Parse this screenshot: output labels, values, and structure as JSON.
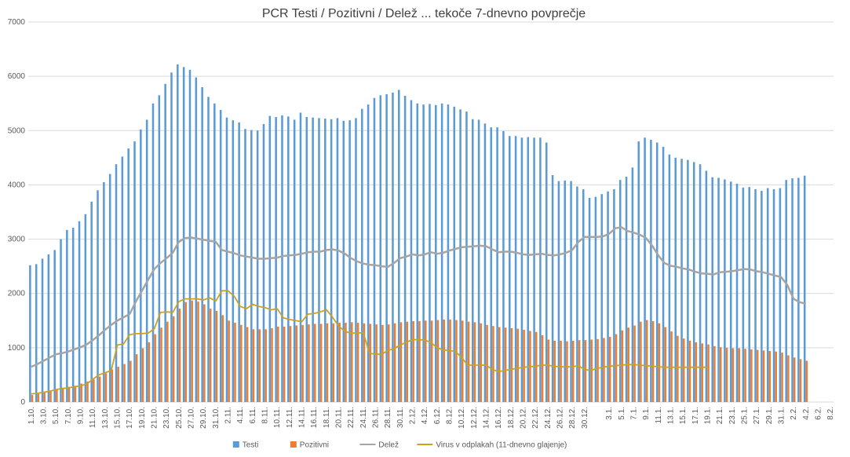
{
  "chart_data": {
    "type": "bar_line",
    "title": "PCR Testi / Pozitivni / Delež ... tekoče 7-dnevno povprečje",
    "ylim": [
      0,
      7000
    ],
    "yticks": [
      0,
      1000,
      2000,
      3000,
      4000,
      5000,
      6000,
      7000
    ],
    "grid": true,
    "legend": "bottom",
    "categories": [
      "1.10.",
      null,
      "3.10.",
      null,
      "5.10.",
      null,
      "7.10.",
      null,
      "9.10.",
      null,
      "11.10.",
      null,
      "13.10.",
      null,
      "15.10.",
      null,
      "17.10.",
      null,
      "19.10.",
      null,
      "21.10.",
      null,
      "23.10.",
      null,
      "25.10.",
      null,
      "27.10.",
      null,
      "29.10.",
      null,
      "31.10.",
      null,
      "2.11.",
      null,
      "4.11.",
      null,
      "6.11.",
      null,
      "8.11.",
      null,
      "10.11.",
      null,
      "12.11.",
      null,
      "14.11.",
      null,
      "16.11.",
      null,
      "18.11.",
      null,
      "20.11.",
      null,
      "22.11.",
      null,
      "24.11.",
      null,
      "26.11.",
      null,
      "28.11.",
      null,
      "30.11.",
      null,
      "2.12.",
      null,
      "4.12.",
      null,
      "6.12.",
      null,
      "8.12.",
      null,
      "10.12.",
      null,
      "12.12.",
      null,
      "14.12.",
      null,
      "16.12.",
      null,
      "18.12.",
      null,
      "20.12.",
      null,
      "22.12.",
      null,
      "24.12.",
      null,
      "26.12.",
      null,
      "28.12.",
      null,
      "30.12.",
      null,
      null,
      null,
      "3.1.",
      null,
      "5.1.",
      null,
      "7.1.",
      null,
      "9.1.",
      null,
      "11.1.",
      null,
      "13.1.",
      null,
      "15.1.",
      null,
      "17.1.",
      null,
      "19.1.",
      null,
      "21.1.",
      null,
      "23.1.",
      null,
      "25.1.",
      null,
      "27.1.",
      null,
      "29.1.",
      null,
      "31.1.",
      null,
      "2.2.",
      null,
      "4.2.",
      null,
      "6.2.",
      null,
      "8.2."
    ],
    "series": [
      {
        "name": "Testi",
        "kind": "bar",
        "color": "#5b9bd5",
        "values": [
          2520,
          2540,
          2640,
          2720,
          2800,
          3000,
          3170,
          3210,
          3330,
          3460,
          3690,
          3900,
          4050,
          4200,
          4380,
          4520,
          4670,
          4800,
          5020,
          5200,
          5500,
          5650,
          5860,
          6070,
          6220,
          6170,
          6120,
          5980,
          5800,
          5620,
          5500,
          5380,
          5240,
          5190,
          5150,
          5030,
          5010,
          5000,
          5120,
          5270,
          5250,
          5280,
          5260,
          5200,
          5330,
          5250,
          5240,
          5230,
          5220,
          5210,
          5230,
          5180,
          5190,
          5230,
          5400,
          5480,
          5600,
          5650,
          5670,
          5700,
          5750,
          5640,
          5560,
          5500,
          5480,
          5490,
          5470,
          5500,
          5480,
          5440,
          5390,
          5350,
          5210,
          5200,
          5130,
          5060,
          5060,
          4990,
          4900,
          4900,
          4870,
          4880,
          4870,
          4870,
          4780,
          4180,
          4070,
          4080,
          4070,
          3970,
          3920,
          3760,
          3780,
          3830,
          3880,
          3920,
          4090,
          4150,
          4320,
          4800,
          4870,
          4830,
          4780,
          4700,
          4560,
          4500,
          4480,
          4460,
          4420,
          4380,
          4260,
          4140,
          4130,
          4100,
          4060,
          4020,
          3950,
          3960,
          3920,
          3890,
          3940,
          3920,
          3940,
          4090,
          4120,
          4130,
          4170,
          null,
          null,
          null,
          null
        ]
      },
      {
        "name": "Pozitivni",
        "kind": "bar",
        "color": "#ed7d31",
        "values": [
          130,
          150,
          180,
          200,
          230,
          250,
          280,
          300,
          340,
          380,
          420,
          470,
          530,
          600,
          650,
          700,
          760,
          880,
          990,
          1100,
          1250,
          1370,
          1480,
          1580,
          1720,
          1840,
          1870,
          1850,
          1800,
          1720,
          1680,
          1600,
          1500,
          1460,
          1420,
          1380,
          1340,
          1340,
          1340,
          1360,
          1390,
          1390,
          1400,
          1410,
          1420,
          1430,
          1440,
          1440,
          1450,
          1450,
          1460,
          1460,
          1470,
          1460,
          1450,
          1440,
          1430,
          1420,
          1430,
          1450,
          1470,
          1480,
          1490,
          1490,
          1500,
          1500,
          1510,
          1520,
          1520,
          1510,
          1500,
          1480,
          1470,
          1450,
          1420,
          1400,
          1380,
          1370,
          1360,
          1350,
          1330,
          1310,
          1290,
          1230,
          1150,
          1130,
          1130,
          1120,
          1130,
          1140,
          1140,
          1150,
          1160,
          1180,
          1200,
          1250,
          1320,
          1370,
          1410,
          1480,
          1510,
          1490,
          1450,
          1380,
          1300,
          1220,
          1170,
          1130,
          1100,
          1080,
          1060,
          1030,
          1010,
          1000,
          990,
          990,
          980,
          970,
          960,
          950,
          940,
          930,
          910,
          860,
          820,
          790,
          760,
          null,
          null,
          null,
          null
        ]
      },
      {
        "name": "Delež",
        "kind": "line",
        "color": "#a5a5a5",
        "values": [
          650,
          700,
          760,
          820,
          880,
          900,
          930,
          970,
          1010,
          1060,
          1140,
          1230,
          1330,
          1420,
          1500,
          1560,
          1620,
          1850,
          2050,
          2250,
          2450,
          2560,
          2650,
          2750,
          2950,
          3020,
          3030,
          3010,
          2990,
          2970,
          2950,
          2800,
          2770,
          2740,
          2700,
          2680,
          2660,
          2640,
          2640,
          2650,
          2660,
          2690,
          2700,
          2710,
          2730,
          2760,
          2770,
          2770,
          2800,
          2810,
          2790,
          2730,
          2650,
          2590,
          2550,
          2530,
          2520,
          2500,
          2490,
          2560,
          2650,
          2680,
          2720,
          2700,
          2720,
          2760,
          2730,
          2750,
          2790,
          2820,
          2850,
          2860,
          2870,
          2880,
          2870,
          2810,
          2760,
          2770,
          2770,
          2750,
          2720,
          2710,
          2720,
          2730,
          2710,
          2700,
          2720,
          2750,
          2800,
          2950,
          3040,
          3040,
          3040,
          3050,
          3100,
          3200,
          3220,
          3150,
          3120,
          3080,
          3020,
          2880,
          2700,
          2560,
          2510,
          2490,
          2460,
          2440,
          2400,
          2370,
          2360,
          2350,
          2390,
          2400,
          2410,
          2430,
          2450,
          2440,
          2410,
          2390,
          2360,
          2330,
          2300,
          2150,
          1900,
          1840,
          1810,
          null,
          null,
          null,
          null
        ]
      },
      {
        "name": "Virus v odplakah (11-dnevno glajenje)",
        "kind": "line",
        "color": "#c9a227",
        "values": [
          150,
          160,
          180,
          200,
          230,
          250,
          260,
          280,
          300,
          330,
          420,
          500,
          540,
          580,
          1050,
          1070,
          1240,
          1260,
          1260,
          1270,
          1350,
          1650,
          1660,
          1650,
          1850,
          1900,
          1900,
          1900,
          1880,
          1920,
          1860,
          2050,
          2050,
          1950,
          1760,
          1720,
          1800,
          1760,
          1740,
          1700,
          1720,
          1550,
          1520,
          1500,
          1480,
          1620,
          1630,
          1660,
          1700,
          1560,
          1400,
          1300,
          1270,
          1270,
          1280,
          900,
          880,
          880,
          950,
          980,
          1050,
          1100,
          1150,
          1150,
          1140,
          1100,
          1000,
          960,
          950,
          930,
          820,
          680,
          680,
          680,
          680,
          600,
          560,
          580,
          600,
          620,
          640,
          650,
          660,
          680,
          680,
          660,
          650,
          650,
          650,
          670,
          600,
          580,
          620,
          640,
          660,
          670,
          680,
          690,
          690,
          680,
          670,
          660,
          650,
          640,
          640,
          640,
          640,
          640,
          640,
          640,
          640,
          null,
          null,
          null,
          null,
          null,
          null,
          null,
          null,
          null,
          null,
          null,
          null,
          null,
          null,
          null,
          null,
          null,
          null,
          null,
          null
        ]
      }
    ]
  }
}
